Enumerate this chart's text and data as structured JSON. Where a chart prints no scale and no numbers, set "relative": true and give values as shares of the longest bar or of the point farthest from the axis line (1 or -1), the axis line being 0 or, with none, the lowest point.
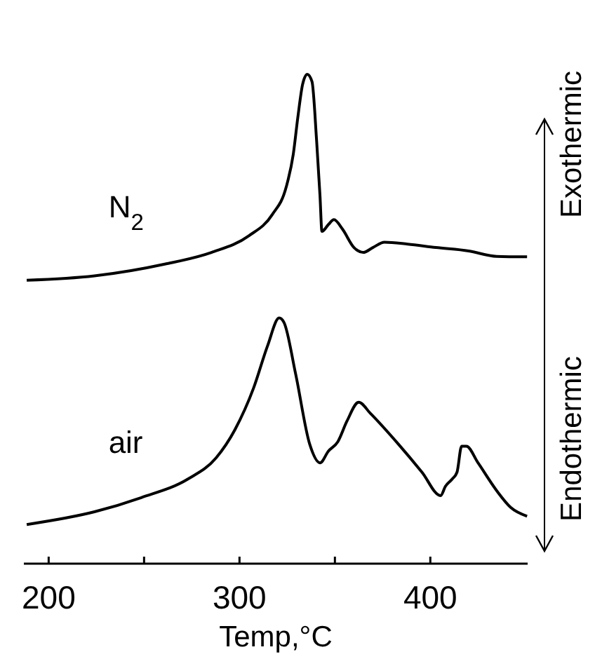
{
  "chart_data": {
    "type": "line",
    "relative": true,
    "xlabel": "Temp,°C",
    "xlim": [
      187,
      451
    ],
    "xticks": [
      200,
      {
        "value": 250,
        "label": null
      },
      300,
      {
        "value": 350,
        "label": null
      },
      400
    ],
    "tick_labels": "x",
    "grid": false,
    "marker": "none",
    "line_style": "solid",
    "annotations": [
      "Exothermic",
      "Endothermic"
    ],
    "series": [
      {
        "name": "N$_{2}$",
        "color": "#000000",
        "x": [
          188.5,
          224.0,
          260.8,
          285.3,
          304.9,
          317.1,
          324.5,
          328.2,
          330.6,
          333.1,
          335.5,
          338.0,
          340.4,
          342.2,
          343.2,
          346.6,
          349.5,
          353.9,
          360.0,
          364.9,
          369.9,
          376.0,
          388.2,
          402.9,
          420.1,
          434.8,
          450.7
        ],
        "values": [
          0.579,
          0.588,
          0.612,
          0.636,
          0.67,
          0.713,
          0.77,
          0.837,
          0.913,
          0.98,
          1.0,
          0.985,
          0.865,
          0.751,
          0.679,
          0.693,
          0.703,
          0.684,
          0.646,
          0.636,
          0.646,
          0.657,
          0.653,
          0.646,
          0.639,
          0.628,
          0.627
        ]
      },
      {
        "name": "air",
        "color": "#000000",
        "x": [
          188.5,
          224.0,
          248.5,
          273.0,
          287.7,
          297.5,
          307.4,
          314.7,
          320.8,
          323.3,
          329.4,
          336.8,
          342.2,
          346.6,
          351.5,
          356.4,
          362.5,
          368.6,
          383.3,
          395.6,
          405.4,
          407.9,
          411.5,
          414.0,
          416.4,
          418.9,
          425.0,
          434.8,
          442.1,
          450.7
        ],
        "values": [
          0.08,
          0.106,
          0.135,
          0.173,
          0.216,
          0.273,
          0.359,
          0.445,
          0.502,
          0.493,
          0.388,
          0.244,
          0.206,
          0.23,
          0.249,
          0.292,
          0.33,
          0.307,
          0.244,
          0.187,
          0.139,
          0.158,
          0.173,
          0.187,
          0.24,
          0.24,
          0.206,
          0.149,
          0.115,
          0.097
        ]
      }
    ]
  }
}
